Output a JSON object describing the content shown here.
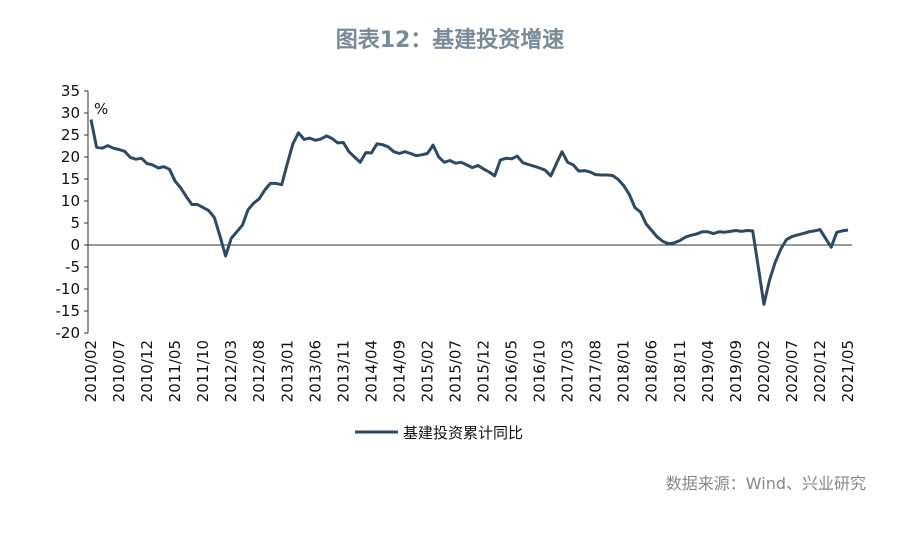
{
  "chart_data": {
    "type": "line",
    "title": "图表12：基建投资增速",
    "y_unit": "%",
    "source": "数据来源：Wind、兴业研究",
    "categories": [
      "2010/02",
      null,
      null,
      null,
      null,
      "2010/07",
      null,
      null,
      null,
      null,
      "2010/12",
      null,
      null,
      null,
      null,
      "2011/05",
      null,
      null,
      null,
      null,
      "2011/10",
      null,
      null,
      null,
      null,
      "2012/03",
      null,
      null,
      null,
      null,
      "2012/08",
      null,
      null,
      null,
      null,
      "2013/01",
      null,
      null,
      null,
      null,
      "2013/06",
      null,
      null,
      null,
      null,
      "2013/11",
      null,
      null,
      null,
      null,
      "2014/04",
      null,
      null,
      null,
      null,
      "2014/09",
      null,
      null,
      null,
      null,
      "2015/02",
      null,
      null,
      null,
      null,
      "2015/07",
      null,
      null,
      null,
      null,
      "2015/12",
      null,
      null,
      null,
      null,
      "2016/05",
      null,
      null,
      null,
      null,
      "2016/10",
      null,
      null,
      null,
      null,
      "2017/03",
      null,
      null,
      null,
      null,
      "2017/08",
      null,
      null,
      null,
      null,
      "2018/01",
      null,
      null,
      null,
      null,
      "2018/06",
      null,
      null,
      null,
      null,
      "2018/11",
      null,
      null,
      null,
      null,
      "2019/04",
      null,
      null,
      null,
      null,
      "2019/09",
      null,
      null,
      null,
      null,
      "2020/02",
      null,
      null,
      null,
      null,
      "2020/07",
      null,
      null,
      null,
      null,
      "2020/12",
      null,
      null,
      null,
      null,
      "2021/05"
    ],
    "series": [
      {
        "name": "基建投资累计同比",
        "color": "#2e4a62",
        "values": [
          28.5,
          22.2,
          22,
          22.6,
          22,
          21.7,
          21.3,
          19.9,
          19.5,
          19.7,
          18.5,
          18.2,
          17.5,
          17.8,
          17.2,
          14.5,
          13,
          11,
          9.2,
          9.2,
          8.5,
          7.8,
          6.2,
          2,
          -2.5,
          1.5,
          3,
          4.5,
          8,
          9.5,
          10.5,
          12.5,
          14,
          14,
          13.7,
          18.5,
          23,
          25.5,
          24,
          24.3,
          23.8,
          24.1,
          24.8,
          24.2,
          23.2,
          23.3,
          21.2,
          20,
          18.8,
          21,
          20.9,
          23,
          22.8,
          22.3,
          21.2,
          20.8,
          21.2,
          20.8,
          20.3,
          20.5,
          20.8,
          22.7,
          20,
          18.8,
          19.2,
          18.6,
          18.8,
          18.2,
          17.6,
          18.1,
          17.3,
          16.6,
          15.7,
          19.3,
          19.7,
          19.6,
          20.2,
          18.7,
          18.3,
          17.9,
          17.5,
          17,
          15.7,
          18.5,
          21.2,
          18.8,
          18.2,
          16.8,
          16.9,
          16.6,
          16,
          15.9,
          15.9,
          15.8,
          14.9,
          13.5,
          11.5,
          8.5,
          7.5,
          4.8,
          3.3,
          1.8,
          0.8,
          0.3,
          0.5,
          1,
          1.8,
          2.2,
          2.5,
          3,
          3,
          2.6,
          3,
          2.9,
          3.1,
          3.3,
          3.1,
          3.3,
          3.2,
          -5,
          -13.5,
          -8,
          -4,
          -1,
          1.2,
          1.9,
          2.3,
          2.6,
          3,
          3.2,
          3.5,
          1.5,
          -0.5,
          2.9,
          3.2,
          3.4
        ]
      }
    ],
    "ylim": [
      -20,
      35
    ],
    "yticks": [
      -20,
      -15,
      -10,
      -5,
      0,
      5,
      10,
      15,
      20,
      25,
      30,
      35
    ],
    "legend": "bottom"
  }
}
